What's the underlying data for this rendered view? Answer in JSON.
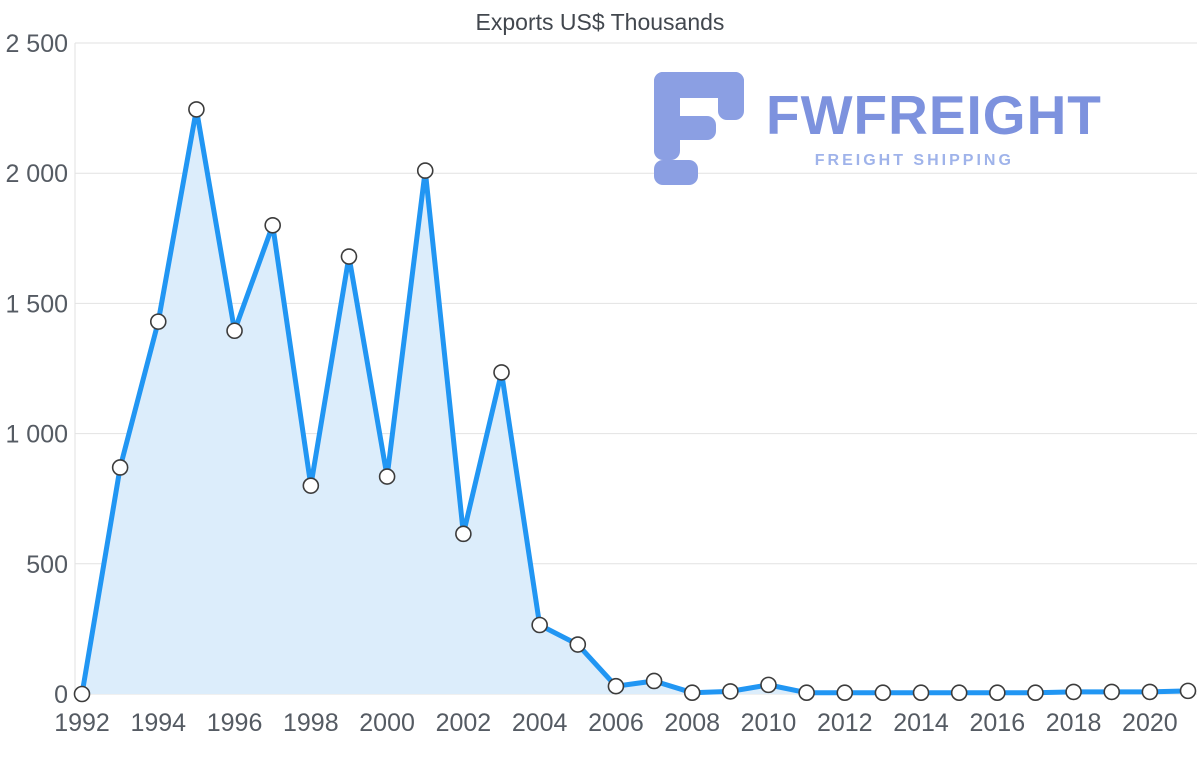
{
  "title": "Exports US$ Thousands",
  "logo": {
    "name": "FWFREIGHT",
    "tagline": "FREIGHT SHIPPING"
  },
  "colors": {
    "accent": "#2196f3",
    "area_fill": "#dcedfb",
    "grid": "#e2e2e2",
    "axis_label": "#555b63",
    "title": "#42474e",
    "logo_mark": "#8b9fe3",
    "logo_text": "#7d92de",
    "logo_tagline": "#9fb3ea"
  },
  "chart_data": {
    "type": "area",
    "title": "Exports US$ Thousands",
    "x": [
      1992,
      1993,
      1994,
      1995,
      1996,
      1997,
      1998,
      1999,
      2000,
      2001,
      2002,
      2003,
      2004,
      2005,
      2006,
      2007,
      2008,
      2009,
      2010,
      2011,
      2012,
      2013,
      2014,
      2015,
      2016,
      2017,
      2018,
      2019,
      2020,
      2021
    ],
    "values": [
      0,
      870,
      1430,
      2245,
      1395,
      1800,
      800,
      1680,
      835,
      2010,
      615,
      1235,
      265,
      190,
      30,
      50,
      5,
      10,
      35,
      5,
      5,
      5,
      5,
      5,
      5,
      5,
      8,
      8,
      8,
      12
    ],
    "xlabel": "",
    "ylabel": "",
    "ylim": [
      0,
      2500
    ],
    "ytick_step": 500,
    "ytick_labels": [
      "0",
      "500",
      "1 000",
      "1 500",
      "2 000",
      "2 500"
    ],
    "xtick_labels": [
      "1992",
      "1994",
      "1996",
      "1998",
      "2000",
      "2002",
      "2004",
      "2006",
      "2008",
      "2010",
      "2012",
      "2014",
      "2016",
      "2018",
      "2020"
    ],
    "grid": "horizontal",
    "legend": "none",
    "line_color": "#2196f3",
    "fill_color": "#dcedfb",
    "marker_fill": "#ffffff",
    "marker_stroke": "#3c3c3c"
  }
}
